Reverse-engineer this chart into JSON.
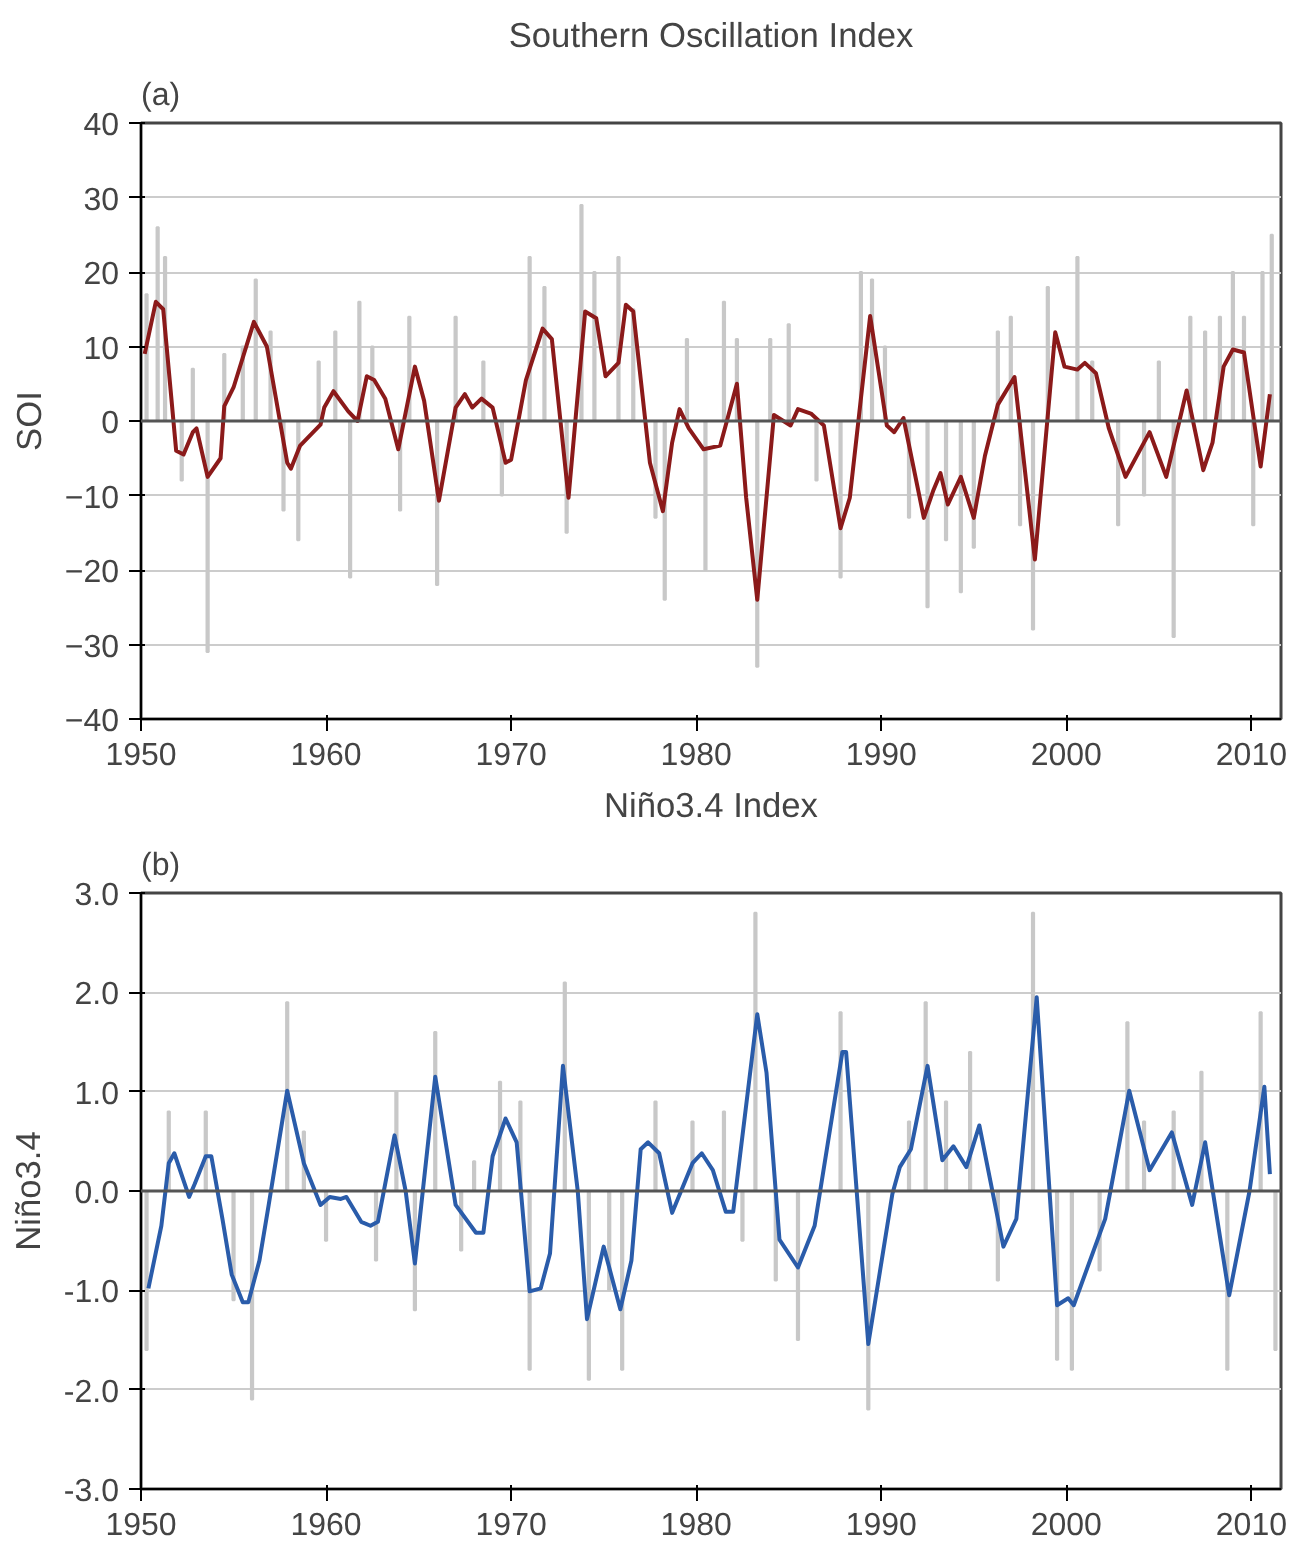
{
  "chart_data": [
    {
      "type": "line",
      "title": "Southern Oscillation Index",
      "ylabel": "SOI",
      "annotations": [
        "(a)"
      ],
      "xlim": [
        1950,
        2011.6
      ],
      "xticks": [
        1950,
        1960,
        1970,
        1980,
        1990,
        2000,
        2010
      ],
      "ylim": [
        -40,
        40
      ],
      "yticks": [
        -40,
        -30,
        -20,
        -10,
        0,
        10,
        20,
        30,
        40
      ],
      "grid": "y",
      "ref_lines": [
        {
          "axis": "y",
          "value": 0,
          "color": "#555555"
        }
      ],
      "series": [
        {
          "type": "bar",
          "color": "#c8c8c8",
          "x": [
            1950.3,
            1950.9,
            1951.3,
            1952.2,
            1952.8,
            1953.6,
            1954.5,
            1955.5,
            1956.2,
            1957,
            1957.7,
            1958.5,
            1959.6,
            1960.5,
            1961.3,
            1961.8,
            1962.5,
            1964,
            1964.5,
            1966,
            1967,
            1968.5,
            1969.5,
            1971,
            1971.8,
            1973,
            1973.8,
            1974.5,
            1975.8,
            1976.6,
            1977.8,
            1978.3,
            1979.5,
            1980.5,
            1981.5,
            1982.2,
            1983.3,
            1984,
            1985,
            1986.5,
            1987.8,
            1988.9,
            1989.5,
            1990.2,
            1991.5,
            1992.5,
            1993.5,
            1994.3,
            1995,
            1996.3,
            1997,
            1997.5,
            1998.2,
            1999,
            2000.6,
            2001.4,
            2002.8,
            2004.2,
            2005,
            2005.8,
            2006.7,
            2007.5,
            2008.3,
            2009,
            2009.6,
            2010.1,
            2010.6,
            2011.1
          ],
          "values": [
            17,
            26,
            22,
            -8,
            7,
            -31,
            9,
            10,
            19,
            12,
            -12,
            -16,
            8,
            12,
            -21,
            16,
            10,
            -12,
            14,
            -22,
            14,
            8,
            -10,
            22,
            18,
            -15,
            29,
            20,
            22,
            15,
            -13,
            -24,
            11,
            -20,
            16,
            11,
            -33,
            11,
            13,
            -8,
            -21,
            20,
            19,
            10,
            -13,
            -25,
            -16,
            -23,
            -17,
            12,
            14,
            -14,
            -28,
            18,
            22,
            8,
            -14,
            -10,
            8,
            -29,
            14,
            12,
            14,
            20,
            14,
            -14,
            20,
            25
          ]
        },
        {
          "color": "#8b1a1a",
          "x": [
            1950.2,
            1950.8,
            1951.2,
            1951.9,
            1952.3,
            1952.8,
            1953,
            1953.6,
            1954.3,
            1954.5,
            1955,
            1956.1,
            1956.8,
            1957.9,
            1958.1,
            1958.6,
            1959.7,
            1959.9,
            1960.4,
            1961.2,
            1961.7,
            1962.2,
            1962.6,
            1963.2,
            1963.9,
            1964.8,
            1965.3,
            1966.1,
            1967,
            1967.5,
            1967.9,
            1968.4,
            1969,
            1969.7,
            1970,
            1970.8,
            1971.7,
            1972.2,
            1973.1,
            1974,
            1974.6,
            1975.1,
            1975.8,
            1976.2,
            1976.6,
            1977.5,
            1978.2,
            1978.7,
            1979.1,
            1979.6,
            1980.4,
            1981.3,
            1981.8,
            1982.2,
            1982.7,
            1983.3,
            1984.2,
            1985.1,
            1985.5,
            1986.2,
            1986.9,
            1987.8,
            1988.3,
            1989.4,
            1990.3,
            1990.7,
            1991.2,
            1992.3,
            1992.8,
            1993.2,
            1993.6,
            1994.3,
            1995,
            1995.6,
            1996.3,
            1997.2,
            1998.3,
            1999.4,
            1999.9,
            2000.6,
            2001,
            2001.6,
            2002.3,
            2003.2,
            2004.5,
            2005.4,
            2006.5,
            2007.4,
            2007.9,
            2008.5,
            2009,
            2009.6,
            2010.5,
            2011
          ],
          "values": [
            9,
            16,
            15,
            -4,
            -4.5,
            -1.5,
            -1,
            -7.5,
            -5,
            2,
            4.5,
            13.3,
            10,
            -5.6,
            -6.4,
            -3.3,
            -0.5,
            1.8,
            4,
            1.3,
            0,
            6,
            5.5,
            3,
            -3.8,
            7.3,
            2.7,
            -10.7,
            1.8,
            3.6,
            1.8,
            3,
            1.8,
            -5.6,
            -5.2,
            5.5,
            12.4,
            11,
            -10.3,
            14.7,
            13.8,
            6,
            7.8,
            15.6,
            14.7,
            -5.6,
            -12.1,
            -2.9,
            1.6,
            -1,
            -3.8,
            -3.3,
            1.3,
            5,
            -10.3,
            -24,
            0.8,
            -0.6,
            1.6,
            1,
            -0.6,
            -14.4,
            -10.3,
            14.1,
            -0.6,
            -1.5,
            0.4,
            -13,
            -9.4,
            -7,
            -11.2,
            -7.5,
            -13,
            -4.7,
            2.2,
            5.9,
            -18.6,
            11.9,
            7.3,
            6.9,
            7.8,
            6.4,
            -1,
            -7.5,
            -1.5,
            -7.5,
            4.1,
            -6.6,
            -2.9,
            7.3,
            9.6,
            9.2,
            -6.1,
            3.6
          ]
        }
      ]
    },
    {
      "type": "line",
      "title": "Niño3.4 Index",
      "ylabel": "Niño3.4",
      "annotations": [
        "(b)"
      ],
      "xlim": [
        1950,
        2011.6
      ],
      "xticks": [
        1950,
        1960,
        1970,
        1980,
        1990,
        2000,
        2010
      ],
      "ylim": [
        -3,
        3
      ],
      "yticks": [
        {
          "value": -3,
          "label": "-3.0"
        },
        {
          "value": -2,
          "label": "-2.0"
        },
        {
          "value": -1,
          "label": "-1.0"
        },
        {
          "value": 0,
          "label": "0.0"
        },
        {
          "value": 1,
          "label": "1.0"
        },
        {
          "value": 2,
          "label": "2.0"
        },
        {
          "value": 3,
          "label": "3.0"
        }
      ],
      "grid": "y",
      "ref_lines": [
        {
          "axis": "y",
          "value": 0,
          "color": "#555555"
        }
      ],
      "series": [
        {
          "type": "bar",
          "color": "#c8c8c8",
          "x": [
            1950.3,
            1951.5,
            1953.5,
            1955,
            1956,
            1957.9,
            1958.8,
            1960,
            1962.7,
            1963.8,
            1964.8,
            1965.9,
            1967.3,
            1968,
            1969.4,
            1970.5,
            1971,
            1972.9,
            1974.2,
            1975.3,
            1976,
            1977.8,
            1979.8,
            1981.5,
            1982.5,
            1983.2,
            1984.3,
            1985.5,
            1986.8,
            1987.8,
            1989.3,
            1991.5,
            1992.4,
            1993.5,
            1994.8,
            1996.3,
            1998.2,
            1999.5,
            2000.3,
            2001.8,
            2003.3,
            2004.2,
            2005.8,
            2007.3,
            2008.7,
            2010.5,
            2011.3
          ],
          "values": [
            -1.6,
            0.8,
            0.8,
            -1.1,
            -2.1,
            1.9,
            0.6,
            -0.5,
            -0.7,
            1,
            -1.2,
            1.6,
            -0.6,
            0.3,
            1.1,
            0.9,
            -1.8,
            2.1,
            -1.9,
            -1,
            -1.8,
            0.9,
            0.7,
            0.8,
            -0.5,
            2.8,
            -0.9,
            -1.5,
            null,
            1.8,
            -2.2,
            0.7,
            1.9,
            0.9,
            1.4,
            -0.9,
            2.8,
            -1.7,
            -1.8,
            -0.8,
            1.7,
            0.7,
            0.8,
            1.2,
            -1.8,
            1.8,
            -1.6
          ]
        },
        {
          "color": "#2a5caa",
          "x": [
            1950.4,
            1951.1,
            1951.5,
            1951.8,
            1952.6,
            1952.9,
            1953.5,
            1953.8,
            1954.4,
            1954.9,
            1955.5,
            1955.8,
            1956.4,
            1956.9,
            1957.9,
            1958.8,
            1959.7,
            1960.2,
            1960.8,
            1961.1,
            1961.9,
            1962.4,
            1962.8,
            1963.7,
            1964.3,
            1964.8,
            1965.9,
            1967,
            1968.1,
            1968.5,
            1969,
            1969.7,
            1970.3,
            1971,
            1971.6,
            1972.1,
            1972.8,
            1973.6,
            1974.1,
            1975,
            1975.9,
            1976.5,
            1977,
            1977.4,
            1978,
            1978.7,
            1979.8,
            1980.3,
            1980.9,
            1981.6,
            1982,
            1983.3,
            1983.8,
            1984.5,
            1985.5,
            1986.4,
            1987.9,
            1988.1,
            1989.3,
            1990.6,
            1991,
            1991.6,
            1992.5,
            1993.3,
            1993.9,
            1994.6,
            1995.3,
            1996.6,
            1997.3,
            1998.4,
            1999.5,
            2000.1,
            2000.4,
            2002.1,
            2003.4,
            2004.5,
            2005.7,
            2006.8,
            2007.5,
            2008.8,
            2009.9,
            2010.7,
            2011
          ],
          "values": [
            -0.98,
            -0.35,
            0.28,
            0.38,
            -0.06,
            0.07,
            0.35,
            0.35,
            -0.28,
            -0.84,
            -1.12,
            -1.12,
            -0.7,
            -0.14,
            1.01,
            0.28,
            -0.14,
            -0.06,
            -0.08,
            -0.06,
            -0.31,
            -0.35,
            -0.31,
            0.56,
            0,
            -0.73,
            1.15,
            -0.14,
            -0.42,
            -0.42,
            0.35,
            0.73,
            0.49,
            -1.01,
            -0.98,
            -0.63,
            1.26,
            0,
            -1.29,
            -0.56,
            -1.19,
            -0.7,
            0.42,
            0.49,
            0.38,
            -0.22,
            0.28,
            0.38,
            0.21,
            -0.21,
            -0.21,
            1.78,
            1.19,
            -0.49,
            -0.77,
            -0.35,
            1.4,
            1.4,
            -1.54,
            -0.03,
            0.24,
            0.42,
            1.26,
            0.31,
            0.45,
            0.24,
            0.66,
            -0.56,
            -0.28,
            1.95,
            -1.15,
            -1.08,
            -1.15,
            -0.28,
            1.01,
            0.21,
            0.59,
            -0.14,
            0.49,
            -1.05,
            0,
            1.05,
            0.17
          ]
        }
      ]
    }
  ]
}
